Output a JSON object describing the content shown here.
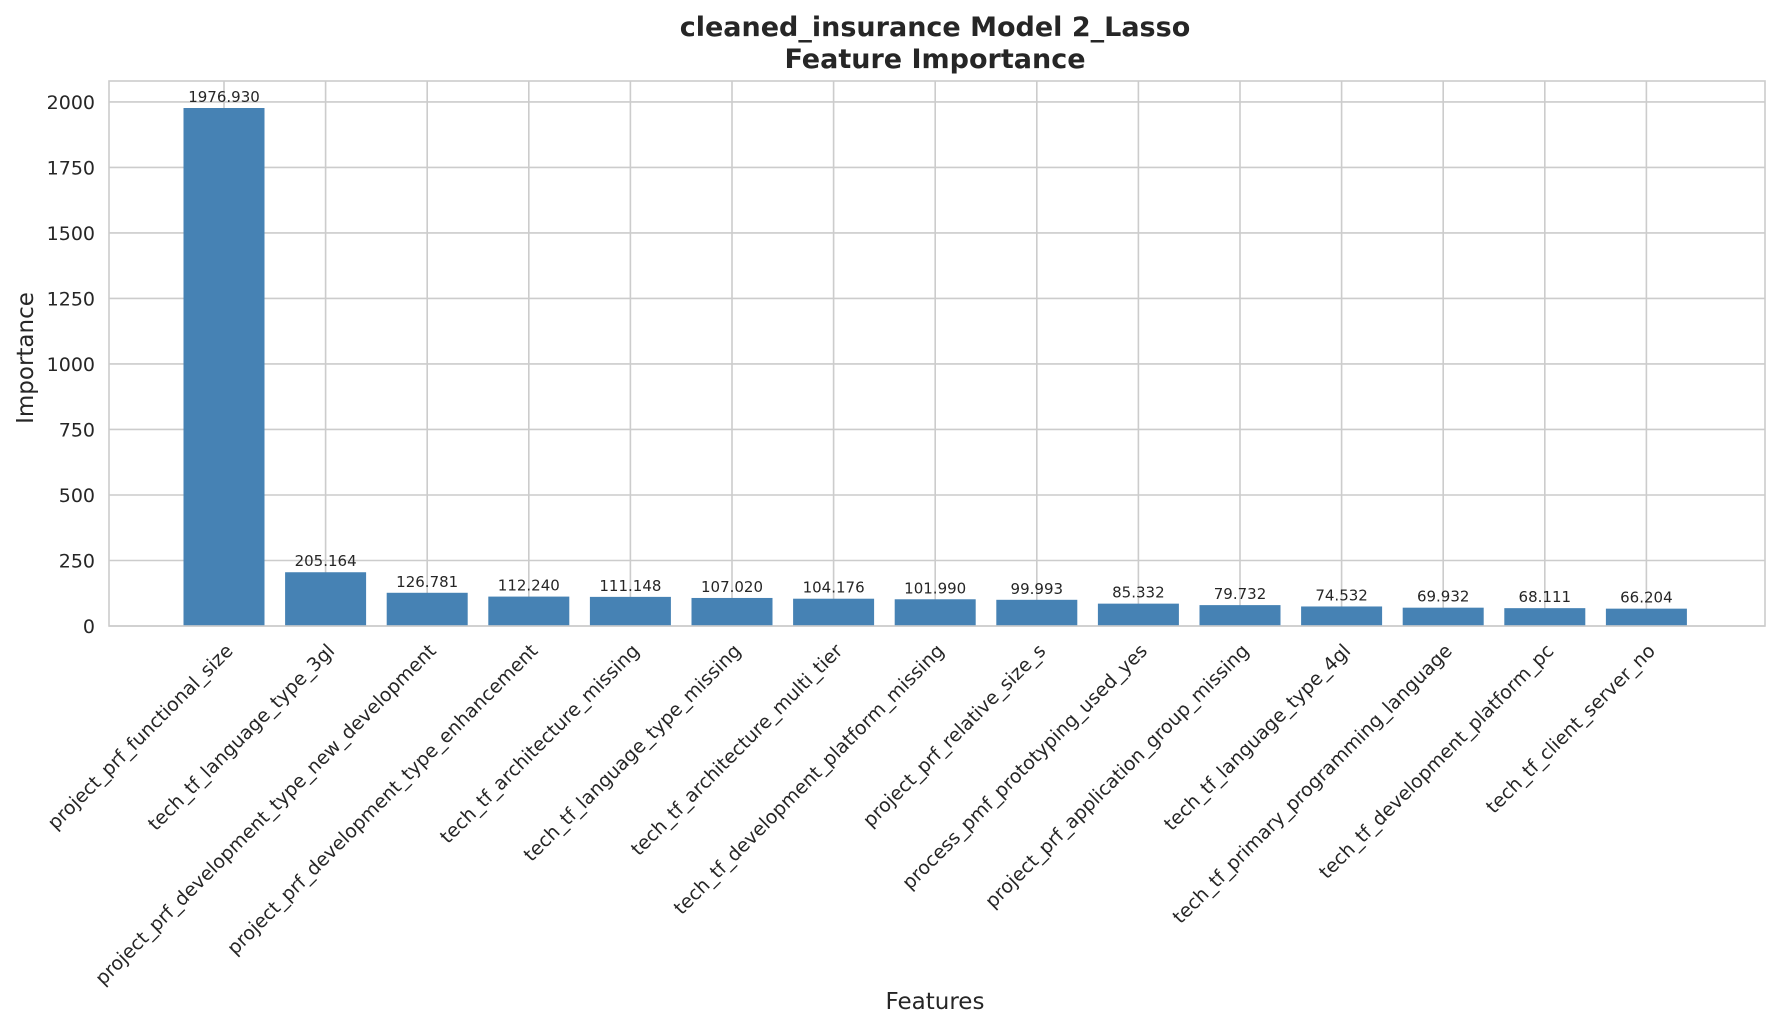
{
  "chart_data": {
    "type": "bar",
    "title": "cleaned_insurance Model 2_Lasso",
    "subtitle": "Feature Importance",
    "xlabel": "Features",
    "ylabel": "Importance",
    "ylim": [
      0,
      2080
    ],
    "yticks": [
      0,
      250,
      500,
      750,
      1000,
      1250,
      1500,
      1750,
      2000
    ],
    "grid": true,
    "bar_color": "#4682b4",
    "categories": [
      "project_prf_functional_size",
      "tech_tf_language_type_3gl",
      "project_prf_development_type_new_development",
      "project_prf_development_type_enhancement",
      "tech_tf_architecture_missing",
      "tech_tf_language_type_missing",
      "tech_tf_architecture_multi_tier",
      "tech_tf_development_platform_missing",
      "project_prf_relative_size_s",
      "process_pmf_prototyping_used_yes",
      "project_prf_application_group_missing",
      "tech_tf_language_type_4gl",
      "tech_tf_primary_programming_language",
      "tech_tf_development_platform_pc",
      "tech_tf_client_server_no"
    ],
    "values": [
      1976.93,
      205.164,
      126.781,
      112.24,
      111.148,
      107.02,
      104.176,
      101.99,
      99.993,
      85.332,
      79.732,
      74.532,
      69.932,
      68.111,
      66.204
    ],
    "value_labels": [
      "1976.930",
      "205.164",
      "126.781",
      "112.240",
      "111.148",
      "107.020",
      "104.176",
      "101.990",
      "99.993",
      "85.332",
      "79.732",
      "74.532",
      "69.932",
      "68.111",
      "66.204"
    ]
  }
}
